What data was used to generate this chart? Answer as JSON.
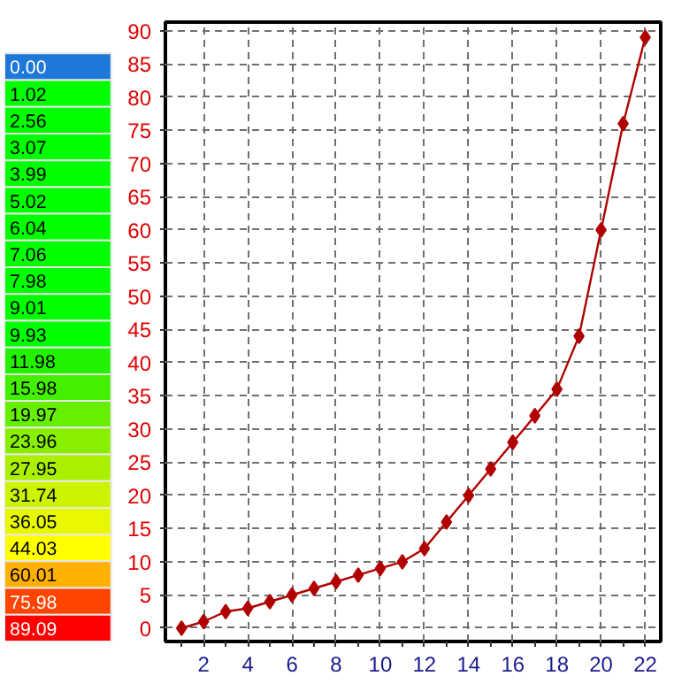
{
  "chart_data": [
    {
      "type": "other",
      "annotations": [
        "0.00",
        "1.02",
        "2.56",
        "3.07",
        "3.99",
        "5.02",
        "6.04",
        "7.06",
        "7.98",
        "9.01",
        "9.93",
        "11.98",
        "15.98",
        "19.97",
        "23.96",
        "27.95",
        "31.74",
        "36.05",
        "44.03",
        "60.01",
        "75.98",
        "89.09"
      ],
      "colors": [
        "#1e78d7",
        "#00ff00",
        "#00ff00",
        "#00ff00",
        "#00ff00",
        "#00ff00",
        "#00ff00",
        "#00ff00",
        "#00ff00",
        "#00ff00",
        "#00ff00",
        "#22f200",
        "#44f000",
        "#66ef00",
        "#88ef00",
        "#aaf000",
        "#ccf400",
        "#e8f800",
        "#ffff00",
        "#ffb000",
        "#ff4400",
        "#ff0000"
      ]
    },
    {
      "type": "line",
      "x": [
        1,
        2,
        3,
        4,
        5,
        6,
        7,
        8,
        9,
        10,
        11,
        12,
        13,
        14,
        15,
        16,
        17,
        18,
        19,
        20,
        21,
        22
      ],
      "values": [
        0,
        1,
        2.5,
        3,
        4,
        5,
        6,
        7,
        8,
        9,
        10,
        12,
        16,
        20,
        24,
        28,
        32,
        36,
        44,
        60,
        76,
        89
      ],
      "color": "#b00000",
      "marker": "diamond",
      "line_style": "solid",
      "xlim": [
        0.27,
        22.7
      ],
      "ylim": [
        -2,
        91.3
      ],
      "xticks": [
        {
          "value": 1,
          "label": null
        },
        2,
        {
          "value": 3,
          "label": null
        },
        4,
        {
          "value": 5,
          "label": null
        },
        6,
        {
          "value": 7,
          "label": null
        },
        8,
        {
          "value": 9,
          "label": null
        },
        10,
        {
          "value": 11,
          "label": null
        },
        12,
        {
          "value": 13,
          "label": null
        },
        14,
        {
          "value": 15,
          "label": null
        },
        16,
        {
          "value": 17,
          "label": null
        },
        18,
        {
          "value": 19,
          "label": null
        },
        20,
        {
          "value": 21,
          "label": null
        },
        22
      ],
      "yticks": [
        0,
        5,
        10,
        15,
        20,
        25,
        30,
        35,
        40,
        45,
        50,
        55,
        60,
        65,
        70,
        75,
        80,
        85,
        90
      ],
      "grid": true
    }
  ]
}
